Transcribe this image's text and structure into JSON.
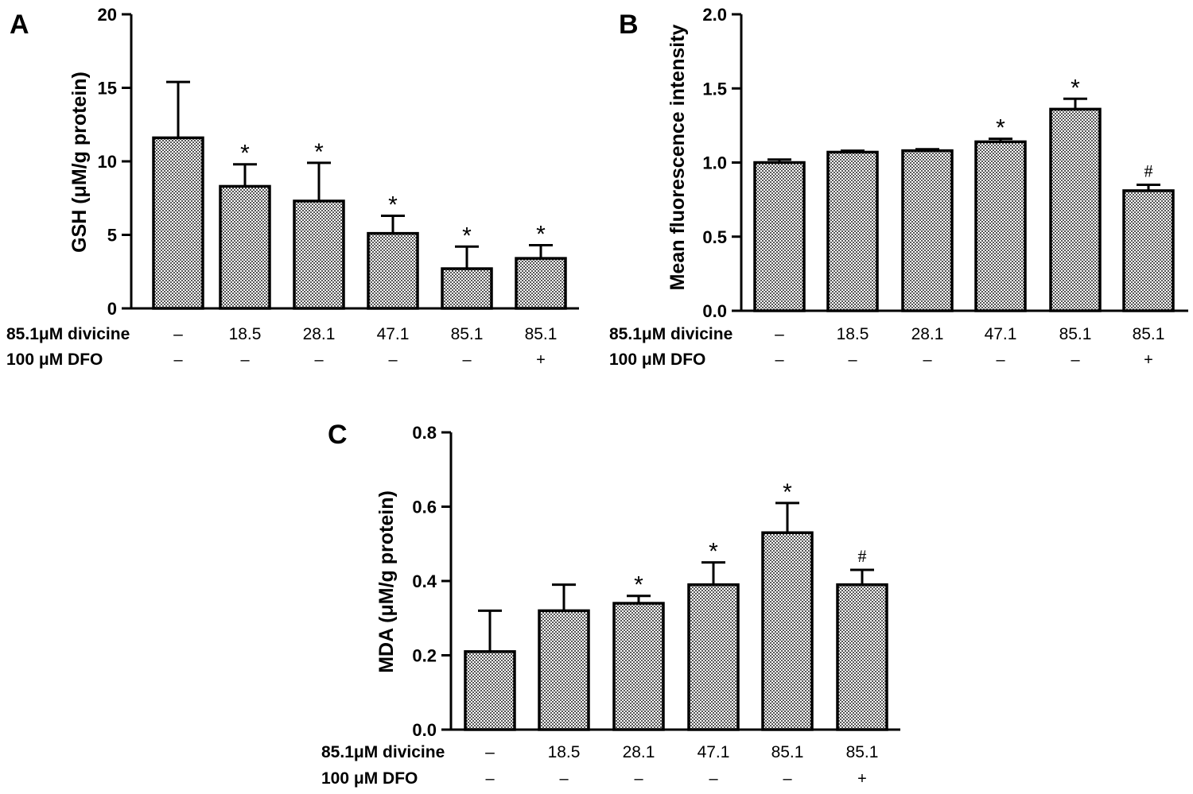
{
  "colors": {
    "ink": "#000000",
    "bar_base": "#ffffff",
    "bar_check": "#555555"
  },
  "chart_data": [
    {
      "panel": "A",
      "type": "bar",
      "ylabel": "GSH (μM/g protein)",
      "ylim": [
        0,
        20
      ],
      "yticks": [
        {
          "value": 0,
          "label": "0"
        },
        {
          "value": 5,
          "label": "5"
        },
        {
          "value": 10,
          "label": "10"
        },
        {
          "value": 15,
          "label": "15"
        },
        {
          "value": 20,
          "label": "20"
        }
      ],
      "row1_label": "85.1μM divicine",
      "row2_label": "100 μM DFO",
      "categories": [
        "–",
        "18.5",
        "28.1",
        "47.1",
        "85.1",
        "85.1"
      ],
      "dfo": [
        "–",
        "–",
        "–",
        "–",
        "–",
        "+"
      ],
      "values": [
        11.6,
        8.3,
        7.3,
        5.1,
        2.7,
        3.4
      ],
      "errors": [
        3.8,
        1.5,
        2.6,
        1.2,
        1.5,
        0.9
      ],
      "marks": [
        "",
        "*",
        "*",
        "*",
        "*",
        "*"
      ]
    },
    {
      "panel": "B",
      "type": "bar",
      "ylabel": "Mean fluorescence intensity",
      "ylim": [
        0,
        2.0
      ],
      "yticks": [
        {
          "value": 0,
          "label": "0.0"
        },
        {
          "value": 0.5,
          "label": "0.5"
        },
        {
          "value": 1.0,
          "label": "1.0"
        },
        {
          "value": 1.5,
          "label": "1.5"
        },
        {
          "value": 2.0,
          "label": "2.0"
        }
      ],
      "row1_label": "85.1μM divicine",
      "row2_label": "100 μM DFO",
      "categories": [
        "–",
        "18.5",
        "28.1",
        "47.1",
        "85.1",
        "85.1"
      ],
      "dfo": [
        "–",
        "–",
        "–",
        "–",
        "–",
        "+"
      ],
      "values": [
        1.0,
        1.07,
        1.08,
        1.14,
        1.36,
        0.81
      ],
      "errors": [
        0.02,
        0.01,
        0.01,
        0.02,
        0.07,
        0.04
      ],
      "marks": [
        "",
        "",
        "",
        "*",
        "*",
        "#"
      ]
    },
    {
      "panel": "C",
      "type": "bar",
      "ylabel": "MDA (μM/g protein)",
      "ylim": [
        0,
        0.8
      ],
      "yticks": [
        {
          "value": 0,
          "label": "0.0"
        },
        {
          "value": 0.2,
          "label": "0.2"
        },
        {
          "value": 0.4,
          "label": "0.4"
        },
        {
          "value": 0.6,
          "label": "0.6"
        },
        {
          "value": 0.8,
          "label": "0.8"
        }
      ],
      "row1_label": "85.1μM divicine",
      "row2_label": "100 μM DFO",
      "categories": [
        "–",
        "18.5",
        "28.1",
        "47.1",
        "85.1",
        "85.1"
      ],
      "dfo": [
        "–",
        "–",
        "–",
        "–",
        "–",
        "+"
      ],
      "values": [
        0.21,
        0.32,
        0.34,
        0.39,
        0.53,
        0.39
      ],
      "errors": [
        0.11,
        0.07,
        0.02,
        0.06,
        0.08,
        0.04
      ],
      "marks": [
        "",
        "",
        "*",
        "*",
        "*",
        "#"
      ]
    }
  ]
}
